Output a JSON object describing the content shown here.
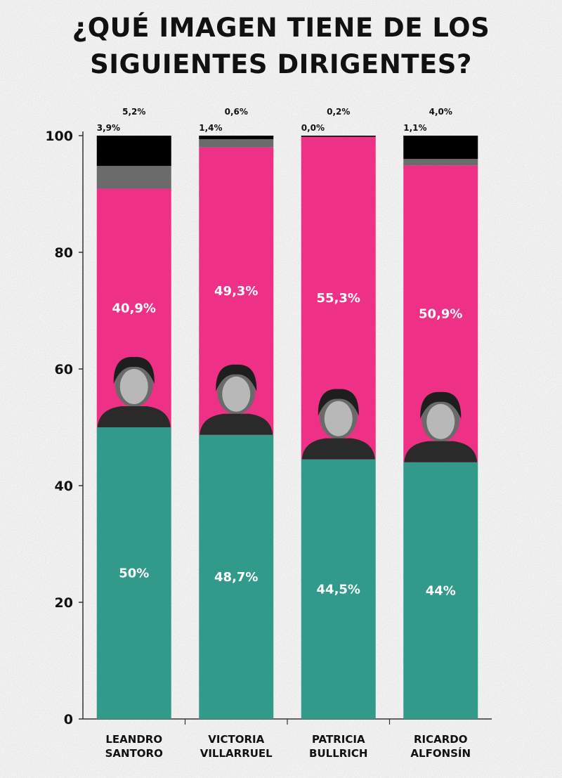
{
  "title_line1": "¿QUÉ IMAGEN TIENE DE LOS",
  "title_line2": "SIGUIENTES DIRIGENTES?",
  "colors": {
    "positive": "#329a8a",
    "negative": "#ee3186",
    "neutral": "#6b6b6b",
    "unknown": "#000000",
    "axis": "#333333"
  },
  "chart_data": {
    "type": "bar",
    "stacked": true,
    "ylim": [
      0,
      100
    ],
    "yticks": [
      "0",
      "20",
      "40",
      "60",
      "80",
      "100"
    ],
    "categories": [
      [
        "LEANDRO",
        "SANTORO"
      ],
      [
        "VICTORIA",
        "VILLARRUEL"
      ],
      [
        "PATRICIA",
        "BULLRICH"
      ],
      [
        "RICARDO",
        "ALFONSÍN"
      ]
    ],
    "series": [
      {
        "values": [
          50,
          48.7,
          44.5,
          44
        ],
        "labels": [
          "50%",
          "48,7%",
          "44,5%",
          "44%"
        ]
      },
      {
        "values": [
          40.9,
          49.3,
          55.3,
          50.9
        ],
        "labels": [
          "40,9%",
          "49,3%",
          "55,3%",
          "50,9%"
        ]
      },
      {
        "values": [
          3.9,
          1.4,
          0.0,
          1.1
        ],
        "labels": [
          "3,9%",
          "1,4%",
          "0,0%",
          "1,1%"
        ]
      },
      {
        "values": [
          5.2,
          0.6,
          0.2,
          4.0
        ],
        "labels": [
          "5,2%",
          "0,6%",
          "0,2%",
          "4,0%"
        ]
      }
    ]
  }
}
